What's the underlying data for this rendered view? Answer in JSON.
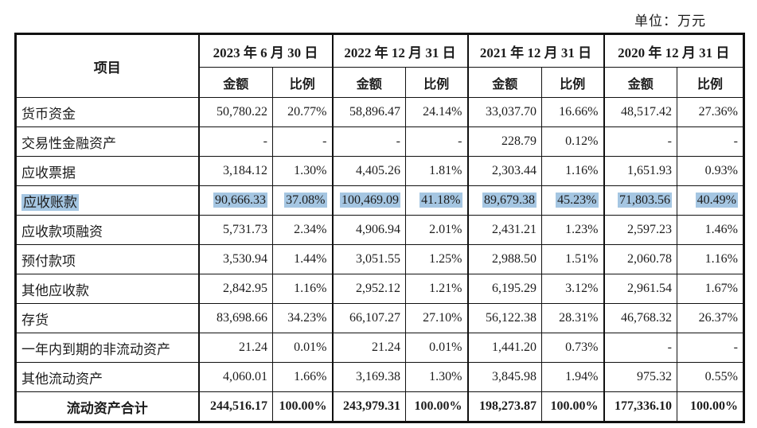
{
  "unit_label": "单位：万元",
  "highlight_color": "#a5c6e2",
  "table": {
    "item_header": "项目",
    "col_groups": [
      {
        "date": "2023 年 6 月 30 日"
      },
      {
        "date": "2022 年 12 月 31 日"
      },
      {
        "date": "2021 年 12 月 31 日"
      },
      {
        "date": "2020 年 12 月 31 日"
      }
    ],
    "sub_headers": {
      "amount": "金额",
      "ratio": "比例"
    },
    "rows": [
      {
        "item": "货币资金",
        "highlight": false,
        "is_total": false,
        "cells": [
          "50,780.22",
          "20.77%",
          "58,896.47",
          "24.14%",
          "33,037.70",
          "16.66%",
          "48,517.42",
          "27.36%"
        ]
      },
      {
        "item": "交易性金融资产",
        "highlight": false,
        "is_total": false,
        "cells": [
          "-",
          "-",
          "-",
          "-",
          "228.79",
          "0.12%",
          "-",
          "-"
        ]
      },
      {
        "item": "应收票据",
        "highlight": false,
        "is_total": false,
        "cells": [
          "3,184.12",
          "1.30%",
          "4,405.26",
          "1.81%",
          "2,303.44",
          "1.16%",
          "1,651.93",
          "0.93%"
        ]
      },
      {
        "item": "应收账款",
        "highlight": true,
        "is_total": false,
        "cells": [
          "90,666.33",
          "37.08%",
          "100,469.09",
          "41.18%",
          "89,679.38",
          "45.23%",
          "71,803.56",
          "40.49%"
        ]
      },
      {
        "item": "应收款项融资",
        "highlight": false,
        "is_total": false,
        "cells": [
          "5,731.73",
          "2.34%",
          "4,906.94",
          "2.01%",
          "2,431.21",
          "1.23%",
          "2,597.23",
          "1.46%"
        ]
      },
      {
        "item": "预付款项",
        "highlight": false,
        "is_total": false,
        "cells": [
          "3,530.94",
          "1.44%",
          "3,051.55",
          "1.25%",
          "2,988.50",
          "1.51%",
          "2,060.78",
          "1.16%"
        ]
      },
      {
        "item": "其他应收款",
        "highlight": false,
        "is_total": false,
        "cells": [
          "2,842.95",
          "1.16%",
          "2,952.12",
          "1.21%",
          "6,195.29",
          "3.12%",
          "2,961.54",
          "1.67%"
        ]
      },
      {
        "item": "存货",
        "highlight": false,
        "is_total": false,
        "cells": [
          "83,698.66",
          "34.23%",
          "66,107.27",
          "27.10%",
          "56,122.38",
          "28.31%",
          "46,768.32",
          "26.37%"
        ]
      },
      {
        "item": "一年内到期的非流动资产",
        "highlight": false,
        "is_total": false,
        "cells": [
          "21.24",
          "0.01%",
          "21.24",
          "0.01%",
          "1,441.20",
          "0.73%",
          "-",
          "-"
        ]
      },
      {
        "item": "其他流动资产",
        "highlight": false,
        "is_total": false,
        "cells": [
          "4,060.01",
          "1.66%",
          "3,169.38",
          "1.30%",
          "3,845.98",
          "1.94%",
          "975.32",
          "0.55%"
        ]
      },
      {
        "item": "流动资产合计",
        "highlight": false,
        "is_total": true,
        "cells": [
          "244,516.17",
          "100.00%",
          "243,979.31",
          "100.00%",
          "198,273.87",
          "100.00%",
          "177,336.10",
          "100.00%"
        ]
      }
    ]
  }
}
